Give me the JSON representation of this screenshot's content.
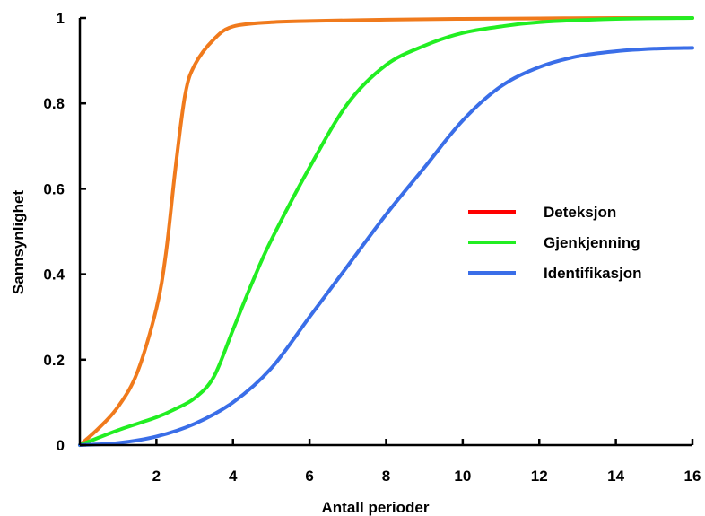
{
  "chart_data": {
    "type": "line",
    "title": "",
    "xlabel": "Antall perioder",
    "ylabel": "Sannsynlighet",
    "xlim": [
      0,
      16
    ],
    "ylim": [
      0,
      1
    ],
    "x_ticks": [
      {
        "value": 2,
        "label": "2"
      },
      {
        "value": 4,
        "label": "4"
      },
      {
        "value": 6,
        "label": "6"
      },
      {
        "value": 8,
        "label": "8"
      },
      {
        "value": 10,
        "label": "10"
      },
      {
        "value": 12,
        "label": "12"
      },
      {
        "value": 14,
        "label": "14"
      },
      {
        "value": 16,
        "label": "16"
      }
    ],
    "y_ticks": [
      {
        "value": 0,
        "label": "0"
      },
      {
        "value": 0.2,
        "label": "0.2"
      },
      {
        "value": 0.4,
        "label": "0.4"
      },
      {
        "value": 0.6,
        "label": "0.6"
      },
      {
        "value": 0.8,
        "label": "0.8"
      },
      {
        "value": 1,
        "label": "1"
      }
    ],
    "grid": false,
    "legend_position": "right",
    "series": [
      {
        "name": "Deteksjon",
        "line_color": "#f07a1c",
        "legend_color": "#ff0000",
        "points": [
          [
            0,
            0
          ],
          [
            0.5,
            0.04
          ],
          [
            1,
            0.09
          ],
          [
            1.5,
            0.17
          ],
          [
            2,
            0.32
          ],
          [
            2.25,
            0.45
          ],
          [
            2.5,
            0.65
          ],
          [
            2.75,
            0.82
          ],
          [
            3,
            0.89
          ],
          [
            3.5,
            0.95
          ],
          [
            4,
            0.98
          ],
          [
            5,
            0.99
          ],
          [
            6,
            0.993
          ],
          [
            8,
            0.996
          ],
          [
            10,
            0.998
          ],
          [
            12,
            0.999
          ],
          [
            14,
            1.0
          ],
          [
            16,
            1.0
          ]
        ]
      },
      {
        "name": "Gjenkjenning",
        "line_color": "#22ee22",
        "legend_color": "#22ee22",
        "points": [
          [
            0,
            0
          ],
          [
            1,
            0.035
          ],
          [
            2,
            0.065
          ],
          [
            2.5,
            0.085
          ],
          [
            3,
            0.11
          ],
          [
            3.5,
            0.16
          ],
          [
            4,
            0.27
          ],
          [
            4.5,
            0.38
          ],
          [
            5,
            0.48
          ],
          [
            6,
            0.65
          ],
          [
            7,
            0.8
          ],
          [
            8,
            0.89
          ],
          [
            9,
            0.935
          ],
          [
            10,
            0.965
          ],
          [
            11,
            0.98
          ],
          [
            12,
            0.99
          ],
          [
            14,
            0.998
          ],
          [
            16,
            1.0
          ]
        ]
      },
      {
        "name": "Identifikasjon",
        "line_color": "#3a6ee8",
        "legend_color": "#3a6ee8",
        "points": [
          [
            0,
            0
          ],
          [
            1,
            0.005
          ],
          [
            2,
            0.02
          ],
          [
            3,
            0.05
          ],
          [
            4,
            0.1
          ],
          [
            5,
            0.18
          ],
          [
            6,
            0.3
          ],
          [
            7,
            0.42
          ],
          [
            8,
            0.54
          ],
          [
            9,
            0.65
          ],
          [
            10,
            0.76
          ],
          [
            11,
            0.84
          ],
          [
            12,
            0.885
          ],
          [
            13,
            0.91
          ],
          [
            14,
            0.922
          ],
          [
            15,
            0.928
          ],
          [
            16,
            0.93
          ]
        ]
      }
    ]
  }
}
